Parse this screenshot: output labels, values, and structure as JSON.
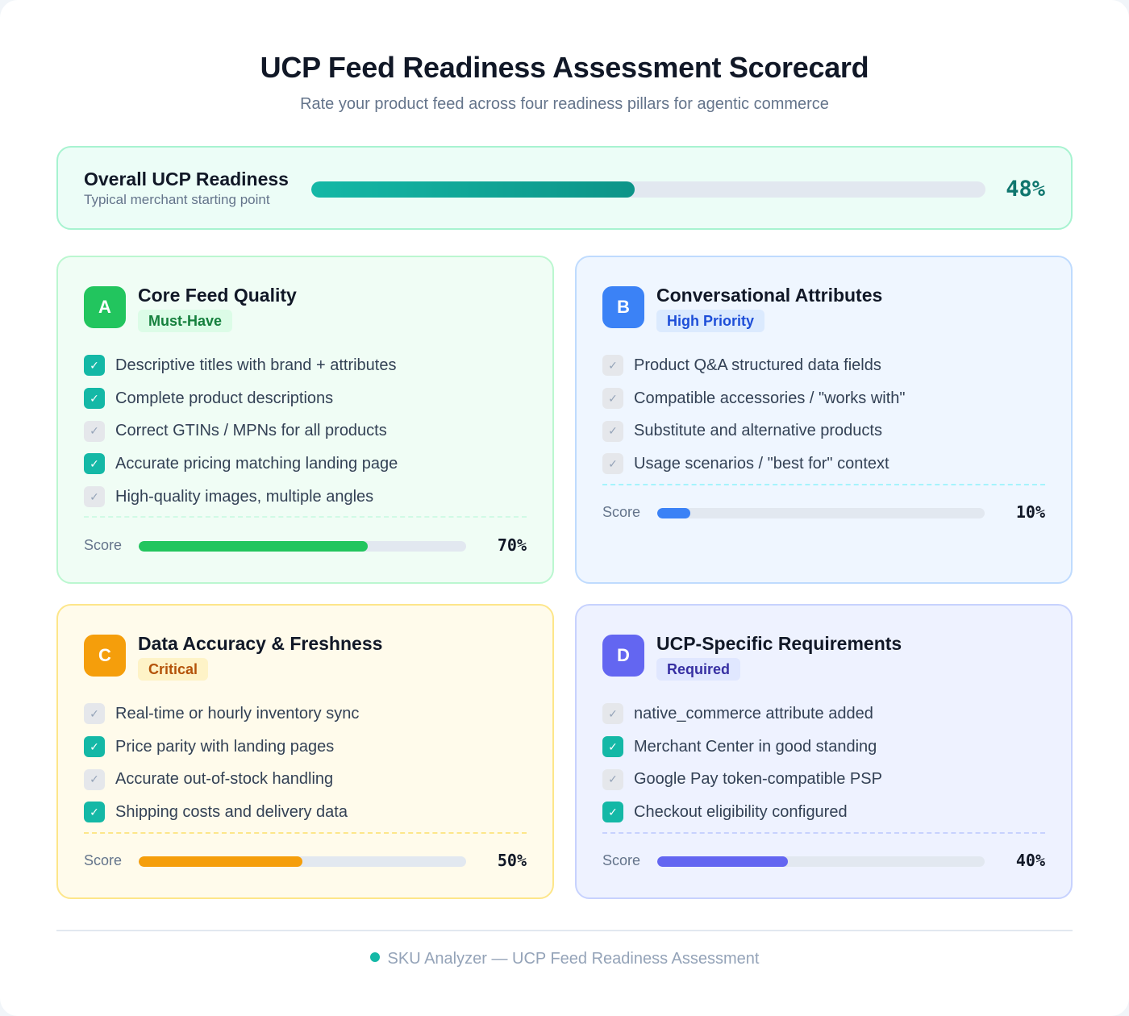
{
  "header": {
    "title": "UCP Feed Readiness Assessment Scorecard",
    "subtitle": "Rate your product feed across four readiness pillars for agentic commerce"
  },
  "overall": {
    "title": "Overall UCP Readiness",
    "subtitle": "Typical merchant starting point",
    "percent": 48,
    "percent_label": "48%",
    "bar_color": "#0d9488"
  },
  "score_label": "Score",
  "check_icon": "check-icon",
  "cards": [
    {
      "key": "a",
      "letter": "A",
      "title": "Core Feed Quality",
      "tag": "Must-Have",
      "color": "#22c55e",
      "tag_bg": "#dcfce7",
      "tag_color": "#15803d",
      "divider_color": "#d1fae5",
      "items": [
        {
          "label": "Descriptive titles with brand + attributes",
          "checked": true
        },
        {
          "label": "Complete product descriptions",
          "checked": true
        },
        {
          "label": "Correct GTINs / MPNs for all products",
          "checked": false
        },
        {
          "label": "Accurate pricing matching landing page",
          "checked": true
        },
        {
          "label": "High-quality images, multiple angles",
          "checked": false
        }
      ],
      "score": 70,
      "score_label": "70%"
    },
    {
      "key": "b",
      "letter": "B",
      "title": "Conversational Attributes",
      "tag": "High Priority",
      "color": "#3b82f6",
      "tag_bg": "#dbeafe",
      "tag_color": "#1d4ed8",
      "divider_color": "#a5f3fc",
      "items": [
        {
          "label": "Product Q&A structured data fields",
          "checked": false
        },
        {
          "label": "Compatible accessories / \"works with\"",
          "checked": false
        },
        {
          "label": "Substitute and alternative products",
          "checked": false
        },
        {
          "label": "Usage scenarios / \"best for\" context",
          "checked": false
        }
      ],
      "score": 10,
      "score_label": "10%"
    },
    {
      "key": "c",
      "letter": "C",
      "title": "Data Accuracy & Freshness",
      "tag": "Critical",
      "color": "#f59e0b",
      "tag_bg": "#fef3c7",
      "tag_color": "#b45309",
      "divider_color": "#fde68a",
      "items": [
        {
          "label": "Real-time or hourly inventory sync",
          "checked": false
        },
        {
          "label": "Price parity with landing pages",
          "checked": true
        },
        {
          "label": "Accurate out-of-stock handling",
          "checked": false
        },
        {
          "label": "Shipping costs and delivery data",
          "checked": true
        }
      ],
      "score": 50,
      "score_label": "50%"
    },
    {
      "key": "d",
      "letter": "D",
      "title": "UCP-Specific Requirements",
      "tag": "Required",
      "color": "#6366f1",
      "tag_bg": "#e0e7ff",
      "tag_color": "#3730a3",
      "divider_color": "#c7d2fe",
      "items": [
        {
          "label": "native_commerce attribute added",
          "checked": false
        },
        {
          "label": "Merchant Center in good standing",
          "checked": true
        },
        {
          "label": "Google Pay token-compatible PSP",
          "checked": false
        },
        {
          "label": "Checkout eligibility configured",
          "checked": true
        }
      ],
      "score": 40,
      "score_label": "40%"
    }
  ],
  "footer": {
    "text": "SKU Analyzer — UCP Feed Readiness Assessment"
  }
}
